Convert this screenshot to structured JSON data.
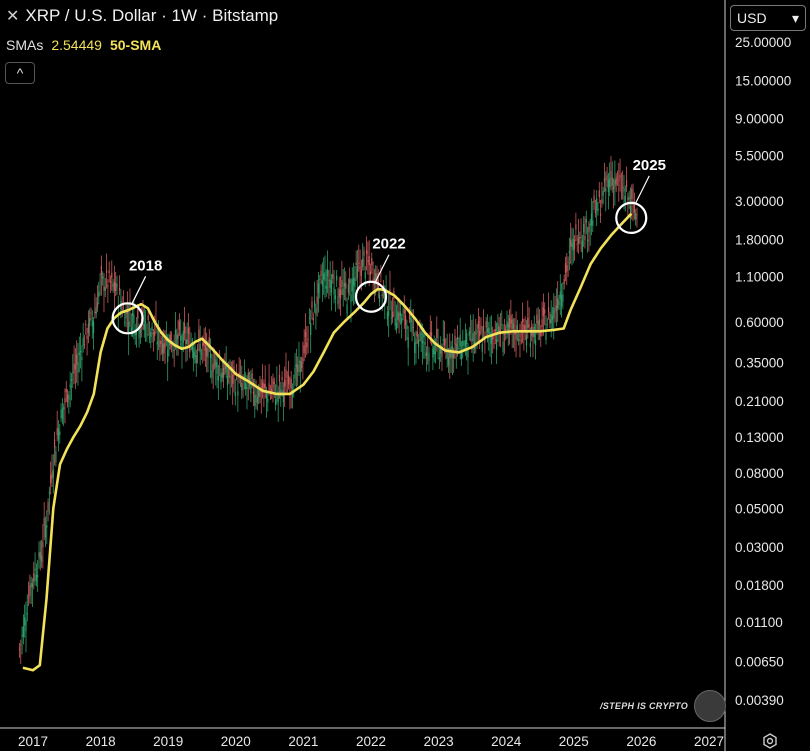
{
  "header": {
    "close_glyph": "✕",
    "title": "XRP / U.S. Dollar · 1W · Bitstamp"
  },
  "indicator": {
    "label": "SMAs",
    "value": "2.54449",
    "name": "50-SMA",
    "color": "#f2e25a"
  },
  "collapse_glyph": "^",
  "currency": {
    "label": "USD",
    "chevron": "▾"
  },
  "watermark": {
    "text": "/STEPH IS CRYPTO"
  },
  "colors": {
    "up": "#2e9e6a",
    "down": "#c95a5a",
    "sma": "#f2e25a",
    "axis": "#ffffff"
  },
  "chart_data": {
    "type": "line",
    "y_scale": "log",
    "y_ticks": [
      "25.00000",
      "15.00000",
      "9.00000",
      "5.50000",
      "3.00000",
      "1.80000",
      "1.10000",
      "0.60000",
      "0.35000",
      "0.21000",
      "0.13000",
      "0.08000",
      "0.05000",
      "0.03000",
      "0.01800",
      "0.01100",
      "0.00650",
      "0.00390"
    ],
    "x_ticks": [
      "2017",
      "2018",
      "2019",
      "2020",
      "2021",
      "2022",
      "2023",
      "2024",
      "2025",
      "2026",
      "2027"
    ],
    "series": [
      {
        "name": "50-SMA",
        "points": [
          [
            2016.85,
            0.006
          ],
          [
            2017.0,
            0.0058
          ],
          [
            2017.1,
            0.0062
          ],
          [
            2017.2,
            0.015
          ],
          [
            2017.3,
            0.05
          ],
          [
            2017.4,
            0.09
          ],
          [
            2017.5,
            0.11
          ],
          [
            2017.6,
            0.13
          ],
          [
            2017.7,
            0.15
          ],
          [
            2017.8,
            0.18
          ],
          [
            2017.9,
            0.23
          ],
          [
            2018.0,
            0.4
          ],
          [
            2018.1,
            0.55
          ],
          [
            2018.2,
            0.63
          ],
          [
            2018.3,
            0.68
          ],
          [
            2018.4,
            0.7
          ],
          [
            2018.5,
            0.73
          ],
          [
            2018.6,
            0.76
          ],
          [
            2018.7,
            0.72
          ],
          [
            2018.8,
            0.6
          ],
          [
            2018.9,
            0.52
          ],
          [
            2019.0,
            0.47
          ],
          [
            2019.1,
            0.44
          ],
          [
            2019.2,
            0.42
          ],
          [
            2019.3,
            0.43
          ],
          [
            2019.4,
            0.46
          ],
          [
            2019.5,
            0.48
          ],
          [
            2019.6,
            0.44
          ],
          [
            2019.7,
            0.4
          ],
          [
            2019.8,
            0.36
          ],
          [
            2019.9,
            0.33
          ],
          [
            2020.0,
            0.3
          ],
          [
            2020.2,
            0.27
          ],
          [
            2020.4,
            0.24
          ],
          [
            2020.6,
            0.23
          ],
          [
            2020.8,
            0.23
          ],
          [
            2021.0,
            0.26
          ],
          [
            2021.15,
            0.31
          ],
          [
            2021.3,
            0.4
          ],
          [
            2021.45,
            0.52
          ],
          [
            2021.6,
            0.6
          ],
          [
            2021.75,
            0.68
          ],
          [
            2021.9,
            0.78
          ],
          [
            2022.0,
            0.87
          ],
          [
            2022.1,
            0.93
          ],
          [
            2022.2,
            0.92
          ],
          [
            2022.35,
            0.85
          ],
          [
            2022.5,
            0.74
          ],
          [
            2022.65,
            0.63
          ],
          [
            2022.8,
            0.52
          ],
          [
            2022.95,
            0.45
          ],
          [
            2023.1,
            0.41
          ],
          [
            2023.3,
            0.4
          ],
          [
            2023.5,
            0.43
          ],
          [
            2023.7,
            0.49
          ],
          [
            2023.9,
            0.52
          ],
          [
            2024.1,
            0.53
          ],
          [
            2024.3,
            0.53
          ],
          [
            2024.5,
            0.53
          ],
          [
            2024.7,
            0.54
          ],
          [
            2024.85,
            0.55
          ],
          [
            2024.95,
            0.7
          ],
          [
            2025.1,
            0.95
          ],
          [
            2025.25,
            1.3
          ],
          [
            2025.4,
            1.6
          ],
          [
            2025.55,
            1.9
          ],
          [
            2025.7,
            2.2
          ],
          [
            2025.85,
            2.54
          ]
        ]
      }
    ],
    "annotations": [
      {
        "label": "2018",
        "x": 2018.4,
        "y": 0.63
      },
      {
        "label": "2022",
        "x": 2022.0,
        "y": 0.84
      },
      {
        "label": "2025",
        "x": 2025.85,
        "y": 2.4
      }
    ]
  }
}
